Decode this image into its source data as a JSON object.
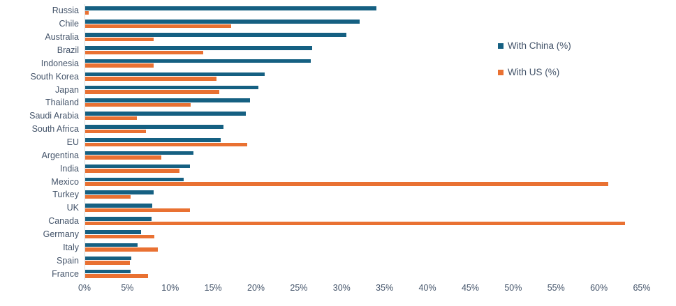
{
  "chart_data": {
    "type": "bar",
    "orientation": "horizontal",
    "title": "",
    "xlabel": "",
    "ylabel": "",
    "xlim": [
      0,
      65
    ],
    "x_tick_step": 5,
    "x_tick_labels": [
      "0%",
      "5%",
      "10%",
      "15%",
      "20%",
      "25%",
      "30%",
      "35%",
      "40%",
      "45%",
      "50%",
      "55%",
      "60%",
      "65%"
    ],
    "grid": false,
    "legend_position": "top-right",
    "categories": [
      "Russia",
      "Chile",
      "Australia",
      "Brazil",
      "Indonesia",
      "South Korea",
      "Japan",
      "Thailand",
      "Saudi Arabia",
      "South Africa",
      "EU",
      "Argentina",
      "India",
      "Mexico",
      "Turkey",
      "UK",
      "Canada",
      "Germany",
      "Italy",
      "Spain",
      "France"
    ],
    "series": [
      {
        "name": "With China (%)",
        "color": "#156082",
        "values": [
          34,
          32,
          30.5,
          26.5,
          26.3,
          20.9,
          20.2,
          19.2,
          18.7,
          16.1,
          15.8,
          12.6,
          12.2,
          11.5,
          8,
          7.8,
          7.7,
          6.5,
          6.1,
          5.4,
          5.3
        ]
      },
      {
        "name": "With US (%)",
        "color": "#E97132",
        "values": [
          0.4,
          17,
          8,
          13.8,
          8,
          15.3,
          15.6,
          12.3,
          6,
          7.1,
          18.9,
          8.9,
          11,
          61,
          5.3,
          12.2,
          63,
          8.1,
          8.5,
          5.2,
          7.3
        ]
      }
    ],
    "colors": {
      "axis_label": "#44546A",
      "axis_line": "#D9D9D9",
      "background": "#FFFFFF"
    }
  }
}
